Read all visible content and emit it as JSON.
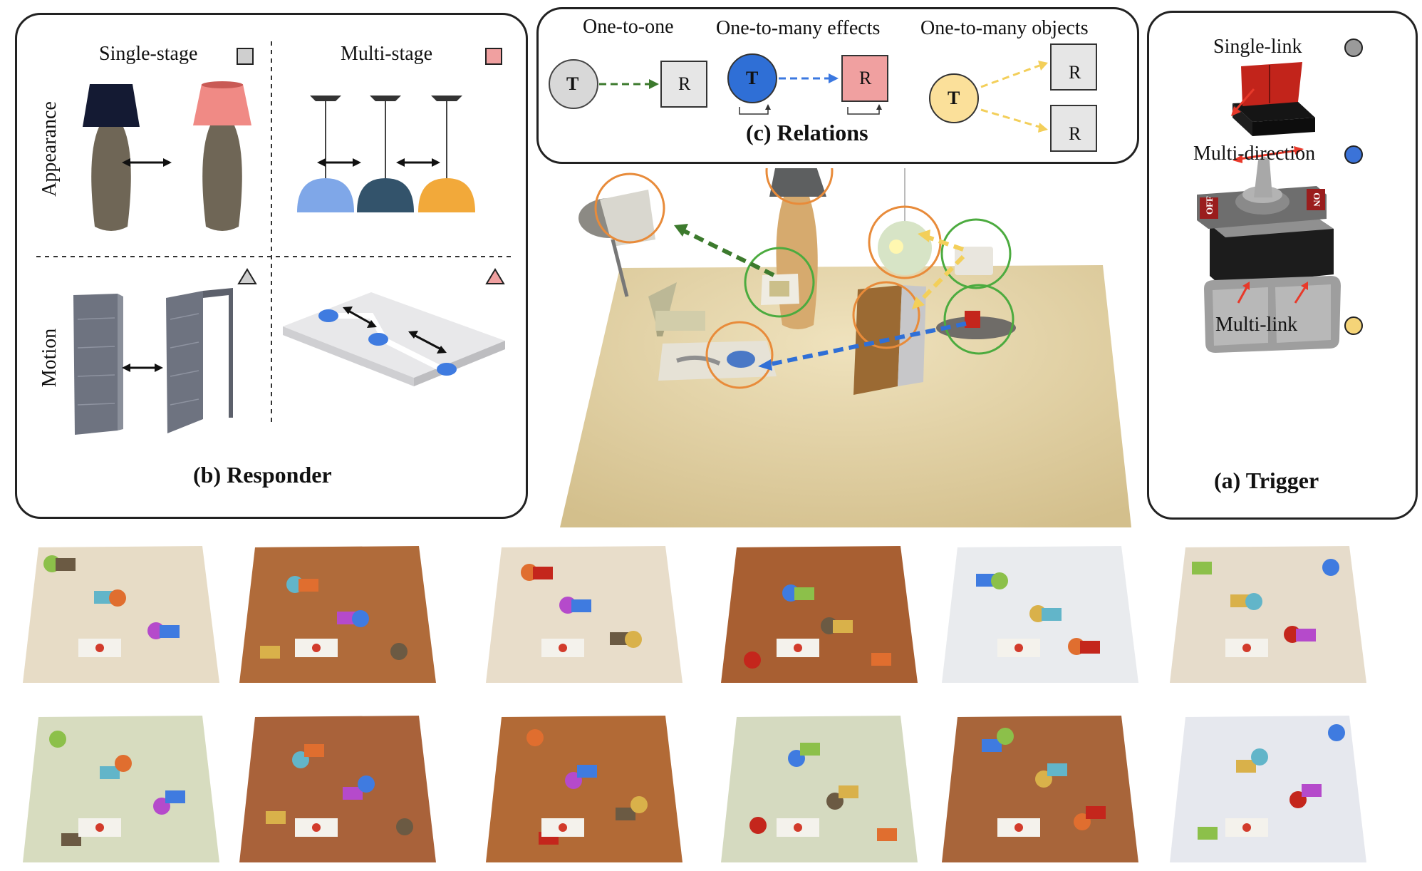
{
  "responder": {
    "title": "(b) Responder",
    "single_stage": "Single-stage",
    "multi_stage": "Multi-stage",
    "appearance": "Appearance",
    "motion": "Motion",
    "colors": {
      "single": "#cfcfcf",
      "multi": "#f0a0a0"
    }
  },
  "relations": {
    "title": "(c) Relations",
    "one_to_one": "One-to-one",
    "one_to_many_effects": "One-to-many effects",
    "one_to_many_objects": "One-to-many objects",
    "t_label": "T",
    "r_label": "R",
    "colors": {
      "one_to_one": "#d8d8d8",
      "effects": "#2f6fd6",
      "objects": "#fbe09a",
      "responder_pink": "#f0a0a0",
      "responder_gray": "#e6e6e6"
    }
  },
  "trigger": {
    "title": "(a) Trigger",
    "single_link": "Single-link",
    "multi_direction": "Multi-direction",
    "multi_link": "Multi-link",
    "off_label": "OFF",
    "on_label": "ON",
    "colors": {
      "single": "#9a9a9a",
      "multi_direction": "#3b73d8",
      "multi_link": "#f5d478"
    }
  },
  "scenes": {
    "row1": [
      "#e7dcc6",
      "#b06b3a",
      "#e8ddca",
      "#a85f32",
      "#e9ebee",
      "#e6dccb"
    ],
    "row2": [
      "#d7dcbf",
      "#a9623a",
      "#b26a36",
      "#d5dac0",
      "#a8653a",
      "#e6e8ee"
    ]
  }
}
